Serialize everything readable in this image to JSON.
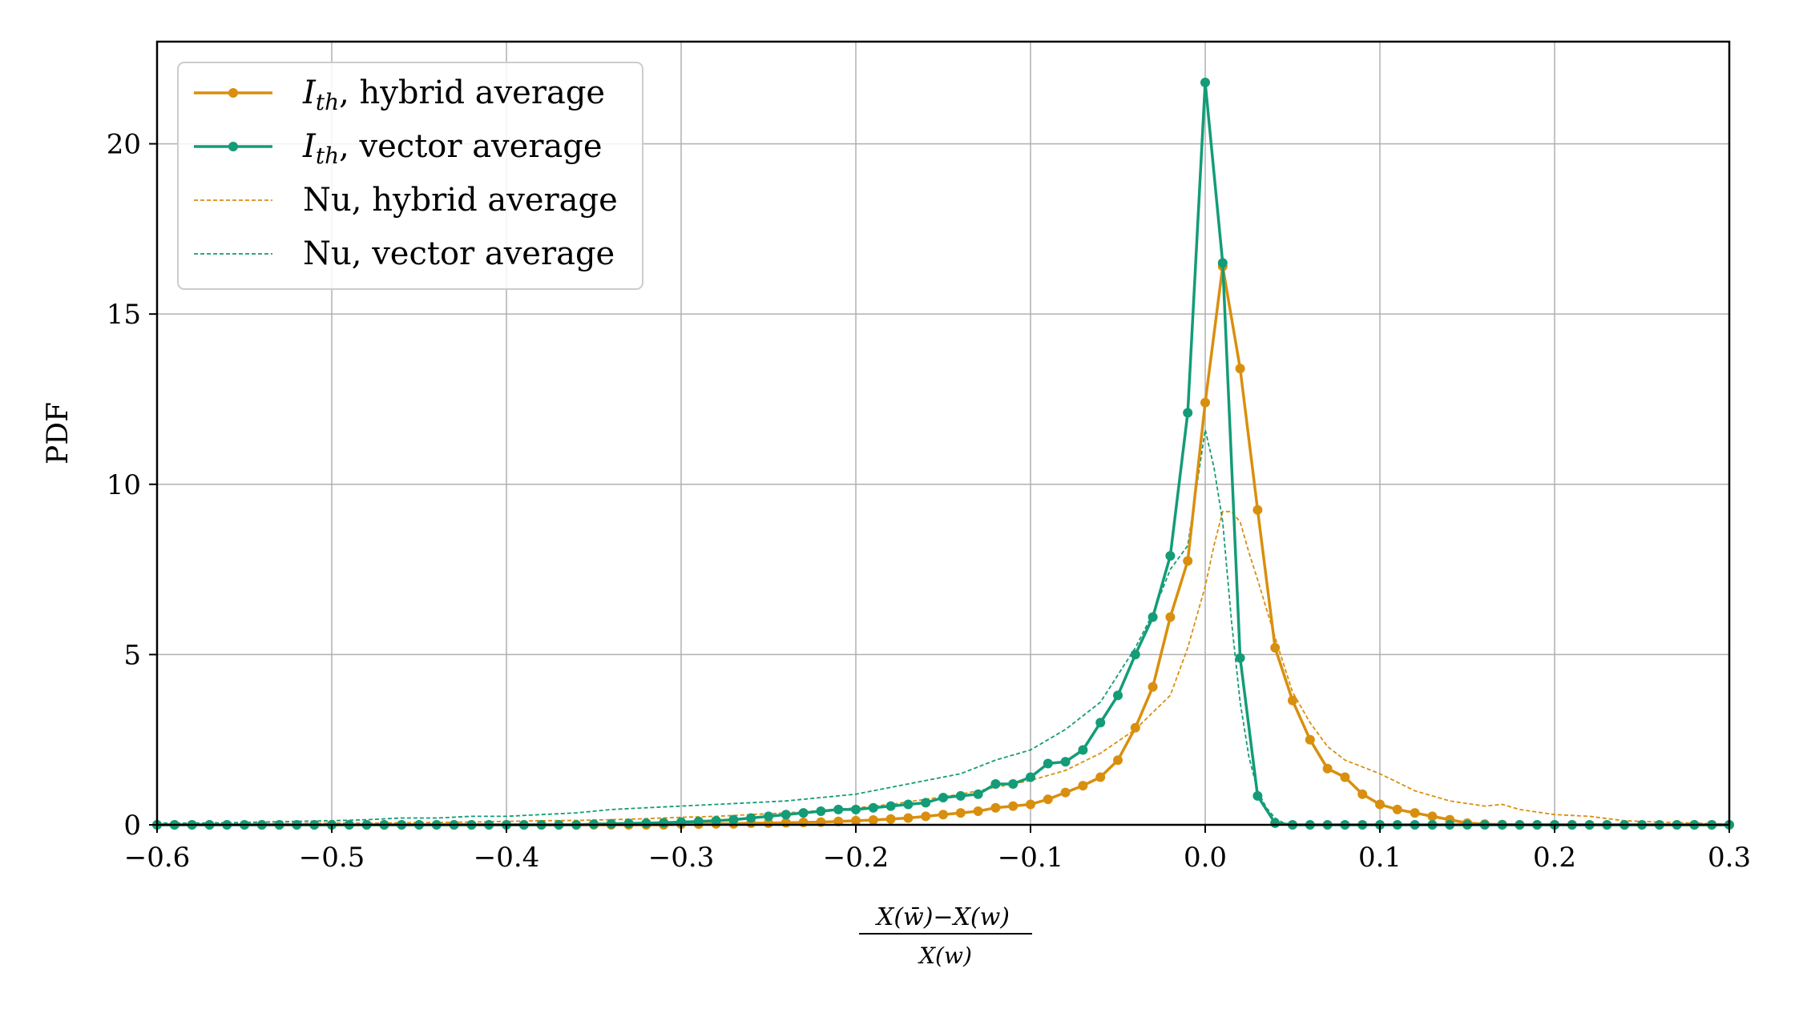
{
  "chart_data": {
    "type": "line",
    "title": "",
    "ylabel": "PDF",
    "xlabel": {
      "numerator": "X(w̄)−X(w)",
      "denominator": "X(w)"
    },
    "xlim": [
      -0.6,
      0.3
    ],
    "ylim": [
      0,
      23
    ],
    "xticks": [
      -0.6,
      -0.5,
      -0.4,
      -0.3,
      -0.2,
      -0.1,
      0.0,
      0.1,
      0.2,
      0.3
    ],
    "xtick_labels": [
      "−0.6",
      "−0.5",
      "−0.4",
      "−0.3",
      "−0.2",
      "−0.1",
      "0.0",
      "0.1",
      "0.2",
      "0.3"
    ],
    "yticks": [
      0,
      5,
      10,
      15,
      20
    ],
    "ytick_labels": [
      "0",
      "5",
      "10",
      "15",
      "20"
    ],
    "grid": true,
    "legend_position": "top-left",
    "series": [
      {
        "name": "I_th, hybrid average",
        "legend_main": "I",
        "legend_sub": "th",
        "legend_rest": ", hybrid average",
        "color": "#d98f0e",
        "style": "solid-marker",
        "x": [
          -0.6,
          -0.59,
          -0.58,
          -0.57,
          -0.56,
          -0.55,
          -0.54,
          -0.53,
          -0.52,
          -0.51,
          -0.5,
          -0.49,
          -0.48,
          -0.47,
          -0.46,
          -0.45,
          -0.44,
          -0.43,
          -0.42,
          -0.41,
          -0.4,
          -0.39,
          -0.38,
          -0.37,
          -0.36,
          -0.35,
          -0.34,
          -0.33,
          -0.32,
          -0.31,
          -0.3,
          -0.29,
          -0.28,
          -0.27,
          -0.26,
          -0.25,
          -0.24,
          -0.23,
          -0.22,
          -0.21,
          -0.2,
          -0.19,
          -0.18,
          -0.17,
          -0.16,
          -0.15,
          -0.14,
          -0.13,
          -0.12,
          -0.11,
          -0.1,
          -0.09,
          -0.08,
          -0.07,
          -0.06,
          -0.05,
          -0.04,
          -0.03,
          -0.02,
          -0.01,
          0.0,
          0.01,
          0.02,
          0.03,
          0.04,
          0.05,
          0.06,
          0.07,
          0.08,
          0.09,
          0.1,
          0.11,
          0.12,
          0.13,
          0.14,
          0.15,
          0.16,
          0.17,
          0.18,
          0.19,
          0.2,
          0.21,
          0.22,
          0.23,
          0.24,
          0.25,
          0.26,
          0.27,
          0.28,
          0.29,
          0.3
        ],
        "y": [
          0.0,
          0.0,
          0.0,
          0.0,
          0.0,
          0.0,
          0.0,
          0.0,
          0.0,
          0.0,
          0.0,
          0.0,
          0.0,
          0.0,
          0.0,
          0.0,
          0.0,
          0.0,
          0.0,
          0.0,
          0.0,
          0.0,
          0.0,
          0.0,
          0.0,
          0.0,
          0.0,
          0.0,
          0.0,
          0.0,
          0.02,
          0.02,
          0.03,
          0.03,
          0.05,
          0.05,
          0.06,
          0.07,
          0.08,
          0.1,
          0.12,
          0.14,
          0.17,
          0.2,
          0.25,
          0.3,
          0.35,
          0.4,
          0.5,
          0.55,
          0.6,
          0.75,
          0.95,
          1.15,
          1.4,
          1.9,
          2.85,
          4.05,
          6.1,
          7.75,
          12.4,
          16.4,
          13.4,
          9.25,
          5.2,
          3.65,
          2.5,
          1.65,
          1.4,
          0.9,
          0.6,
          0.45,
          0.35,
          0.25,
          0.15,
          0.05,
          0.02,
          0.01,
          0.0,
          0.0,
          0.0,
          0.0,
          0.0,
          0.0,
          0.0,
          0.0,
          0.0,
          0.0,
          0.0,
          0.0,
          0.0
        ]
      },
      {
        "name": "I_th, vector average",
        "legend_main": "I",
        "legend_sub": "th",
        "legend_rest": ", vector average",
        "color": "#139c77",
        "style": "solid-marker",
        "x": [
          -0.6,
          -0.59,
          -0.58,
          -0.57,
          -0.56,
          -0.55,
          -0.54,
          -0.53,
          -0.52,
          -0.51,
          -0.5,
          -0.49,
          -0.48,
          -0.47,
          -0.46,
          -0.45,
          -0.44,
          -0.43,
          -0.42,
          -0.41,
          -0.4,
          -0.39,
          -0.38,
          -0.37,
          -0.36,
          -0.35,
          -0.34,
          -0.33,
          -0.32,
          -0.31,
          -0.3,
          -0.29,
          -0.28,
          -0.27,
          -0.26,
          -0.25,
          -0.24,
          -0.23,
          -0.22,
          -0.21,
          -0.2,
          -0.19,
          -0.18,
          -0.17,
          -0.16,
          -0.15,
          -0.14,
          -0.13,
          -0.12,
          -0.11,
          -0.1,
          -0.09,
          -0.08,
          -0.07,
          -0.06,
          -0.05,
          -0.04,
          -0.03,
          -0.02,
          -0.01,
          0.0,
          0.01,
          0.02,
          0.03,
          0.04,
          0.05,
          0.06,
          0.07,
          0.08,
          0.09,
          0.1,
          0.11,
          0.12,
          0.13,
          0.14,
          0.15,
          0.16,
          0.17,
          0.18,
          0.19,
          0.2,
          0.21,
          0.22,
          0.23,
          0.24,
          0.25,
          0.26,
          0.27,
          0.28,
          0.29,
          0.3
        ],
        "y": [
          0.0,
          0.0,
          0.0,
          0.0,
          0.0,
          0.0,
          0.0,
          0.0,
          0.0,
          0.0,
          0.0,
          0.0,
          0.0,
          0.0,
          0.0,
          0.0,
          0.0,
          0.0,
          0.0,
          0.0,
          0.0,
          0.0,
          0.0,
          0.0,
          0.0,
          0.02,
          0.03,
          0.04,
          0.05,
          0.06,
          0.08,
          0.1,
          0.12,
          0.15,
          0.2,
          0.25,
          0.3,
          0.35,
          0.4,
          0.45,
          0.45,
          0.5,
          0.55,
          0.6,
          0.65,
          0.8,
          0.85,
          0.9,
          1.2,
          1.2,
          1.4,
          1.8,
          1.85,
          2.2,
          3.0,
          3.8,
          5.0,
          6.1,
          7.9,
          12.1,
          21.8,
          16.5,
          4.9,
          0.85,
          0.05,
          0.0,
          0.0,
          0.0,
          0.0,
          0.0,
          0.0,
          0.0,
          0.0,
          0.0,
          0.0,
          0.0,
          0.0,
          0.0,
          0.0,
          0.0,
          0.0,
          0.0,
          0.0,
          0.0,
          0.0,
          0.0,
          0.0,
          0.0,
          0.0,
          0.0,
          0.0
        ]
      },
      {
        "name": "Nu, hybrid average",
        "legend_main": "Nu, hybrid average",
        "color": "#d98f0e",
        "style": "dashed",
        "x": [
          -0.6,
          -0.58,
          -0.56,
          -0.54,
          -0.52,
          -0.5,
          -0.48,
          -0.46,
          -0.44,
          -0.42,
          -0.4,
          -0.38,
          -0.36,
          -0.34,
          -0.32,
          -0.3,
          -0.28,
          -0.26,
          -0.24,
          -0.22,
          -0.2,
          -0.18,
          -0.16,
          -0.14,
          -0.12,
          -0.1,
          -0.08,
          -0.06,
          -0.04,
          -0.02,
          -0.01,
          0.0,
          0.005,
          0.01,
          0.015,
          0.02,
          0.025,
          0.03,
          0.04,
          0.05,
          0.06,
          0.07,
          0.08,
          0.09,
          0.1,
          0.12,
          0.14,
          0.16,
          0.17,
          0.18,
          0.2,
          0.22,
          0.24,
          0.26,
          0.28,
          0.3
        ],
        "y": [
          0.0,
          0.02,
          0.03,
          0.03,
          0.04,
          0.05,
          0.05,
          0.06,
          0.07,
          0.08,
          0.1,
          0.12,
          0.13,
          0.15,
          0.18,
          0.22,
          0.25,
          0.3,
          0.35,
          0.42,
          0.5,
          0.6,
          0.75,
          0.9,
          1.1,
          1.3,
          1.6,
          2.1,
          2.8,
          3.8,
          5.2,
          7.0,
          8.2,
          9.2,
          9.2,
          8.9,
          8.0,
          7.2,
          5.5,
          3.9,
          3.0,
          2.3,
          1.9,
          1.7,
          1.5,
          1.0,
          0.7,
          0.55,
          0.6,
          0.45,
          0.3,
          0.25,
          0.12,
          0.08,
          0.05,
          0.02
        ]
      },
      {
        "name": "Nu, vector average",
        "legend_main": "Nu, vector average",
        "color": "#139c77",
        "style": "dashed",
        "x": [
          -0.6,
          -0.58,
          -0.56,
          -0.54,
          -0.52,
          -0.5,
          -0.48,
          -0.46,
          -0.44,
          -0.42,
          -0.4,
          -0.38,
          -0.36,
          -0.34,
          -0.32,
          -0.3,
          -0.28,
          -0.26,
          -0.24,
          -0.22,
          -0.2,
          -0.18,
          -0.16,
          -0.14,
          -0.12,
          -0.1,
          -0.08,
          -0.06,
          -0.04,
          -0.03,
          -0.02,
          -0.01,
          0.0,
          0.005,
          0.01,
          0.015,
          0.02,
          0.025,
          0.03,
          0.035,
          0.04,
          0.045,
          0.05,
          0.06,
          0.08,
          0.1,
          0.15,
          0.2,
          0.25,
          0.3
        ],
        "y": [
          0.05,
          0.05,
          0.06,
          0.08,
          0.1,
          0.12,
          0.15,
          0.2,
          0.2,
          0.25,
          0.25,
          0.3,
          0.35,
          0.45,
          0.5,
          0.55,
          0.6,
          0.65,
          0.7,
          0.8,
          0.9,
          1.1,
          1.3,
          1.5,
          1.9,
          2.2,
          2.8,
          3.6,
          5.2,
          6.2,
          7.5,
          8.2,
          11.6,
          10.5,
          8.9,
          6.0,
          3.6,
          2.0,
          1.0,
          0.5,
          0.2,
          0.05,
          0.0,
          0.0,
          0.0,
          0.0,
          0.0,
          0.0,
          0.0,
          0.0
        ]
      }
    ]
  }
}
